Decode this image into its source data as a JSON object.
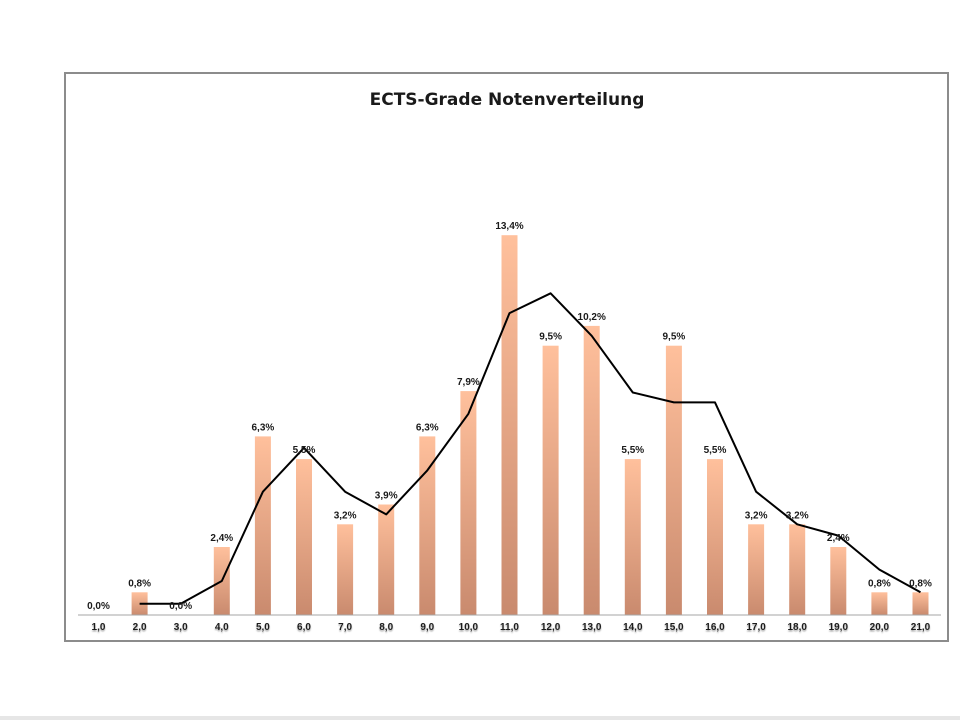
{
  "chart_data": {
    "type": "bar",
    "title": "ECTS-Grade Notenverteilung",
    "xlabel": "",
    "ylabel": "",
    "ylim": [
      0,
      14.5
    ],
    "grid": false,
    "legend": "none",
    "categories": [
      "1,0",
      "2,0",
      "3,0",
      "4,0",
      "5,0",
      "6,0",
      "7,0",
      "8,0",
      "9,0",
      "10,0",
      "11,0",
      "12,0",
      "13,0",
      "14,0",
      "15,0",
      "16,0",
      "17,0",
      "18,0",
      "19,0",
      "20,0",
      "21,0"
    ],
    "values": [
      0.0,
      0.8,
      0.0,
      2.4,
      6.3,
      5.5,
      3.2,
      3.9,
      6.3,
      7.9,
      13.4,
      9.5,
      10.2,
      5.5,
      9.5,
      5.5,
      3.2,
      3.2,
      2.4,
      0.8,
      0.8
    ],
    "labels": [
      "0,0%",
      "0,8%",
      "0,0%",
      "2,4%",
      "6,3%",
      "5,5%",
      "3,2%",
      "3,9%",
      "6,3%",
      "7,9%",
      "13,4%",
      "9,5%",
      "10,2%",
      "5,5%",
      "9,5%",
      "5,5%",
      "3,2%",
      "3,2%",
      "2,4%",
      "0,8%",
      "0,8%"
    ],
    "trend_line": {
      "x_start_index": 1,
      "values": [
        0.4,
        0.4,
        1.2,
        4.35,
        5.9,
        4.35,
        3.55,
        5.1,
        7.1,
        10.65,
        11.35,
        9.85,
        7.85,
        7.5,
        7.5,
        4.35,
        3.2,
        2.8,
        1.6,
        0.8
      ]
    },
    "colors": {
      "bar_top": "#ffc09c",
      "bar_bottom": "#c98a6e",
      "line": "#000000",
      "axis": "#a6a6a6"
    }
  }
}
